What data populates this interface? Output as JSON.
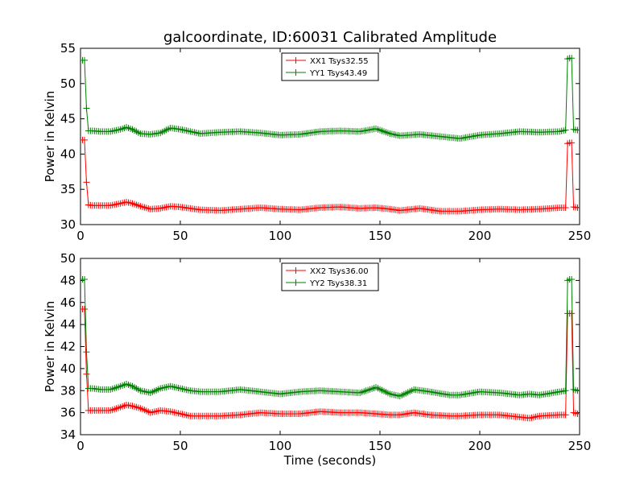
{
  "figure": {
    "title": "galcoordinate, ID:60031 Calibrated Amplitude"
  },
  "chart_data": [
    {
      "type": "line",
      "title": "galcoordinate, ID:60031 Calibrated Amplitude",
      "xlabel": "",
      "ylabel": "Power in Kelvin",
      "xlim": [
        0,
        250
      ],
      "ylim": [
        30,
        55
      ],
      "xticks": [
        "0",
        "50",
        "100",
        "150",
        "200",
        "250"
      ],
      "yticks": [
        "30",
        "35",
        "40",
        "45",
        "50",
        "55"
      ],
      "grid": false,
      "legend_position": "top-center",
      "series": [
        {
          "name": "XX1 Tsys32.55",
          "color": "#ff0000",
          "x": [
            1,
            2,
            3,
            4,
            6,
            10,
            15,
            20,
            23,
            26,
            30,
            35,
            40,
            45,
            50,
            55,
            60,
            70,
            80,
            90,
            100,
            110,
            120,
            130,
            140,
            148,
            155,
            160,
            170,
            180,
            190,
            200,
            210,
            220,
            230,
            240,
            243,
            244,
            245,
            246,
            247,
            249
          ],
          "values": [
            42.0,
            42.0,
            36.0,
            32.8,
            32.7,
            32.7,
            32.7,
            33.0,
            33.2,
            33.0,
            32.6,
            32.2,
            32.3,
            32.6,
            32.5,
            32.3,
            32.1,
            32.0,
            32.2,
            32.4,
            32.2,
            32.1,
            32.4,
            32.5,
            32.3,
            32.4,
            32.2,
            32.0,
            32.3,
            31.9,
            31.9,
            32.1,
            32.2,
            32.1,
            32.2,
            32.4,
            32.4,
            41.5,
            41.6,
            41.6,
            32.5,
            32.4
          ]
        },
        {
          "name": "YY1 Tsys43.49",
          "color": "#008000",
          "x": [
            1,
            2,
            3,
            4,
            6,
            10,
            15,
            20,
            23,
            26,
            30,
            35,
            40,
            45,
            50,
            55,
            60,
            70,
            80,
            90,
            100,
            110,
            120,
            130,
            140,
            148,
            155,
            160,
            170,
            180,
            190,
            200,
            210,
            220,
            230,
            240,
            243,
            244,
            245,
            246,
            247,
            249
          ],
          "values": [
            53.3,
            53.3,
            46.5,
            43.3,
            43.3,
            43.2,
            43.2,
            43.5,
            43.8,
            43.5,
            42.9,
            42.8,
            43.0,
            43.7,
            43.5,
            43.2,
            42.9,
            43.1,
            43.2,
            43.0,
            42.7,
            42.8,
            43.2,
            43.3,
            43.2,
            43.6,
            42.9,
            42.6,
            42.8,
            42.5,
            42.2,
            42.7,
            42.9,
            43.2,
            43.1,
            43.2,
            43.4,
            53.5,
            53.6,
            53.6,
            43.5,
            43.4
          ]
        }
      ]
    },
    {
      "type": "line",
      "title": "",
      "xlabel": "Time (seconds)",
      "ylabel": "Power in Kelvin",
      "xlim": [
        0,
        250
      ],
      "ylim": [
        34,
        50
      ],
      "xticks": [
        "0",
        "50",
        "100",
        "150",
        "200",
        "250"
      ],
      "yticks": [
        "34",
        "36",
        "38",
        "40",
        "42",
        "44",
        "46",
        "48",
        "50"
      ],
      "grid": false,
      "legend_position": "top-center",
      "series": [
        {
          "name": "XX2 Tsys36.00",
          "color": "#ff0000",
          "x": [
            1,
            2,
            3,
            4,
            6,
            10,
            15,
            20,
            23,
            26,
            30,
            35,
            40,
            45,
            50,
            55,
            60,
            70,
            80,
            90,
            100,
            110,
            120,
            130,
            140,
            148,
            155,
            160,
            167,
            175,
            185,
            190,
            200,
            210,
            220,
            225,
            230,
            240,
            243,
            244,
            245,
            246,
            247,
            249
          ],
          "values": [
            45.4,
            45.4,
            39.5,
            36.2,
            36.2,
            36.2,
            36.2,
            36.5,
            36.7,
            36.6,
            36.4,
            36.0,
            36.2,
            36.1,
            35.9,
            35.7,
            35.7,
            35.7,
            35.8,
            36.0,
            35.9,
            35.9,
            36.1,
            36.0,
            36.0,
            35.9,
            35.8,
            35.8,
            36.0,
            35.8,
            35.7,
            35.7,
            35.8,
            35.8,
            35.6,
            35.5,
            35.7,
            35.8,
            35.8,
            45.0,
            45.0,
            45.0,
            36.0,
            35.9
          ]
        },
        {
          "name": "YY2 Tsys38.31",
          "color": "#008000",
          "x": [
            1,
            2,
            3,
            4,
            6,
            10,
            15,
            20,
            23,
            26,
            30,
            35,
            40,
            45,
            50,
            55,
            60,
            70,
            80,
            90,
            100,
            110,
            120,
            130,
            140,
            148,
            155,
            160,
            167,
            175,
            185,
            190,
            200,
            210,
            220,
            225,
            230,
            240,
            243,
            244,
            245,
            246,
            247,
            249
          ],
          "values": [
            48.1,
            48.1,
            41.5,
            38.2,
            38.2,
            38.1,
            38.1,
            38.4,
            38.6,
            38.4,
            38.0,
            37.8,
            38.2,
            38.4,
            38.2,
            38.0,
            37.9,
            37.9,
            38.1,
            37.9,
            37.7,
            37.9,
            38.0,
            37.9,
            37.8,
            38.3,
            37.7,
            37.5,
            38.1,
            37.9,
            37.6,
            37.6,
            37.9,
            37.8,
            37.6,
            37.7,
            37.6,
            37.9,
            38.0,
            48.0,
            48.1,
            48.1,
            38.1,
            38.0
          ]
        }
      ]
    }
  ]
}
